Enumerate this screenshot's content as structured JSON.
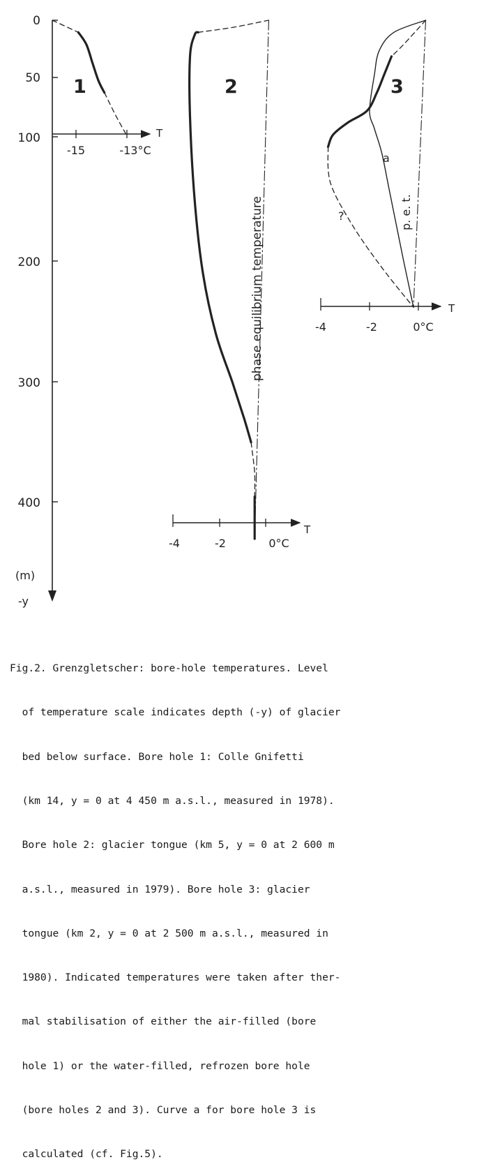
{
  "chart_data": [
    {
      "type": "line",
      "panel_label": "1",
      "x_unit": "°C",
      "ticks_x": [
        "-15",
        "-13°C"
      ],
      "axis_x_label": "T",
      "xlim": [
        -16.5,
        -11.8
      ],
      "bed_depth_m": 95,
      "series": [
        {
          "style": "dashed",
          "points": [
            [
              -16.5,
              0
            ],
            [
              -15.2,
              10
            ]
          ]
        },
        {
          "style": "solid",
          "points": [
            [
              -15.2,
              10
            ],
            [
              -14.8,
              20
            ],
            [
              -14.5,
              35
            ],
            [
              -14.2,
              50
            ],
            [
              -13.9,
              60
            ]
          ]
        },
        {
          "style": "dashed",
          "points": [
            [
              -13.9,
              60
            ],
            [
              -13.3,
              80
            ],
            [
              -12.8,
              95
            ]
          ]
        }
      ]
    },
    {
      "type": "line",
      "panel_label": "2",
      "x_unit": "°C",
      "ticks_x": [
        "-4",
        "-2",
        "0°C"
      ],
      "axis_x_label": "T",
      "xlim": [
        -4.8,
        0.9
      ],
      "bed_depth_m": 430,
      "reference_line_label": "phase equilibrium temperature",
      "series": [
        {
          "style": "dashed",
          "points": [
            [
              -2.95,
              10
            ],
            [
              -1.5,
              6
            ],
            [
              0.05,
              0
            ]
          ]
        },
        {
          "style": "solid",
          "points": [
            [
              -2.95,
              10
            ],
            [
              -3.1,
              12
            ],
            [
              -3.3,
              30
            ],
            [
              -3.3,
              80
            ],
            [
              -3.1,
              150
            ],
            [
              -2.75,
              210
            ],
            [
              -2.2,
              260
            ],
            [
              -1.5,
              300
            ],
            [
              -1.0,
              330
            ],
            [
              -0.7,
              350
            ]
          ]
        },
        {
          "style": "dashed",
          "points": [
            [
              -0.7,
              350
            ],
            [
              -0.55,
              375
            ],
            [
              -0.55,
              395
            ]
          ]
        },
        {
          "style": "solid",
          "points": [
            [
              -0.55,
              395
            ],
            [
              -0.55,
              430
            ]
          ]
        },
        {
          "style": "dash-dot",
          "points": [
            [
              0.05,
              0
            ],
            [
              -0.55,
              430
            ]
          ]
        }
      ]
    },
    {
      "type": "line",
      "panel_label": "3",
      "x_unit": "°C",
      "ticks_x": [
        "-4",
        "-2",
        "0°C"
      ],
      "axis_x_label": "T",
      "xlim": [
        -4.3,
        0.9
      ],
      "bed_depth_m": 238,
      "curve_labels": [
        "a",
        "?",
        "p. e. t."
      ],
      "series": [
        {
          "name": "a",
          "style": "thin",
          "points": [
            [
              0,
              0
            ],
            [
              -1.3,
              10
            ],
            [
              -1.9,
              25
            ],
            [
              -2.1,
              45
            ],
            [
              -2.3,
              75
            ],
            [
              -2.1,
              90
            ],
            [
              -1.8,
              110
            ],
            [
              -1.5,
              140
            ],
            [
              -1.2,
              170
            ],
            [
              -0.9,
              200
            ],
            [
              -0.5,
              238
            ]
          ]
        },
        {
          "style": "dashed",
          "points": [
            [
              0,
              0
            ],
            [
              -0.9,
              20
            ],
            [
              -1.4,
              30
            ]
          ]
        },
        {
          "style": "solid",
          "points": [
            [
              -1.4,
              30
            ],
            [
              -1.7,
              45
            ],
            [
              -2.0,
              60
            ],
            [
              -2.4,
              75
            ],
            [
              -3.2,
              85
            ],
            [
              -3.8,
              95
            ],
            [
              -4.0,
              105
            ]
          ]
        },
        {
          "style": "dashed",
          "points": [
            [
              -4.0,
              105
            ],
            [
              -3.9,
              135
            ],
            [
              -3.0,
              170
            ],
            [
              -1.8,
              205
            ],
            [
              -0.5,
              238
            ]
          ]
        },
        {
          "style": "dash-dot",
          "points": [
            [
              0,
              0
            ],
            [
              -0.5,
              238
            ]
          ]
        }
      ]
    }
  ],
  "depth_axis": {
    "ticks": [
      "0",
      "50",
      "100",
      "200",
      "300",
      "400"
    ],
    "unit_label": "(m)",
    "arrow_label": "-y"
  },
  "caption": {
    "lines": [
      "Fig.2. Grenzgletscher: bore-hole temperatures. Level",
      "  of temperature scale indicates depth (-y) of glacier",
      "  bed below surface. Bore hole 1: Colle Gnifetti",
      "  (km 14, y = 0 at 4 450 m a.s.l., measured in 1978).",
      "  Bore hole 2: glacier tongue (km 5, y = 0 at 2 600 m",
      "  a.s.l., measured in 1979). Bore hole 3: glacier",
      "  tongue (km 2, y = 0 at 2 500 m a.s.l., measured in",
      "  1980). Indicated temperatures were taken after ther-",
      "  mal stabilisation of either the air-filled (bore",
      "  hole 1) or the water-filled, refrozen bore hole",
      "  (bore holes 2 and 3). Curve a for bore hole 3 is",
      "  calculated (cf. Fig.5)."
    ]
  }
}
